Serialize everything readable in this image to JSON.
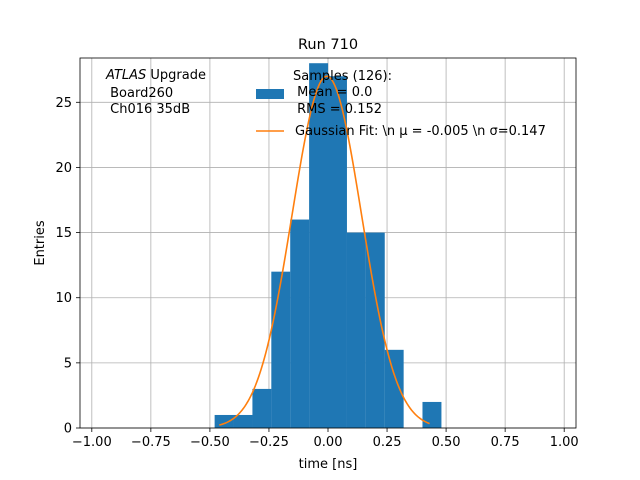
{
  "chart_data": {
    "type": "bar",
    "title": "Run 710",
    "xlabel": "time [ns]",
    "ylabel": "Entries",
    "xlim": [
      -1.05,
      1.05
    ],
    "ylim": [
      0,
      28.4
    ],
    "grid": true,
    "x_ticks": [
      -1.0,
      -0.75,
      -0.5,
      -0.25,
      0.0,
      0.25,
      0.5,
      0.75,
      1.0
    ],
    "x_tick_labels": [
      "−1.00",
      "−0.75",
      "−0.50",
      "−0.25",
      "0.00",
      "0.25",
      "0.50",
      "0.75",
      "1.00"
    ],
    "y_ticks": [
      0,
      5,
      10,
      15,
      20,
      25
    ],
    "y_tick_labels": [
      "0",
      "5",
      "10",
      "15",
      "20",
      "25"
    ],
    "bin_width": 0.079,
    "bins": [
      {
        "x": -0.48,
        "count": 1
      },
      {
        "x": -0.4,
        "count": 1
      },
      {
        "x": -0.32,
        "count": 3
      },
      {
        "x": -0.24,
        "count": 12
      },
      {
        "x": -0.16,
        "count": 16
      },
      {
        "x": -0.08,
        "count": 28
      },
      {
        "x": 0.0,
        "count": 27
      },
      {
        "x": 0.08,
        "count": 15
      },
      {
        "x": 0.16,
        "count": 15
      },
      {
        "x": 0.24,
        "count": 6
      },
      {
        "x": 0.32,
        "count": 0
      },
      {
        "x": 0.4,
        "count": 2
      }
    ],
    "fit": {
      "mu": -0.005,
      "sigma": 0.147,
      "amplitude": 27.0,
      "x_range": [
        -0.46,
        0.43
      ]
    },
    "colors": {
      "hist": "#1f77b4",
      "fit": "#ff7f0e"
    },
    "legend": {
      "placement": "top-center",
      "entries": [
        {
          "kind": "patch",
          "lines": [
            "Samples (126):",
            " Mean = 0.0",
            " RMS = 0.152"
          ]
        },
        {
          "kind": "line",
          "lines": [
            "Gaussian Fit: \\n μ = -0.005 \\n σ=0.147"
          ]
        }
      ]
    },
    "annotation": {
      "italic": "ATLAS",
      "rest": " Upgrade",
      "lines": [
        " Board260",
        " Ch016 35dB"
      ]
    }
  }
}
